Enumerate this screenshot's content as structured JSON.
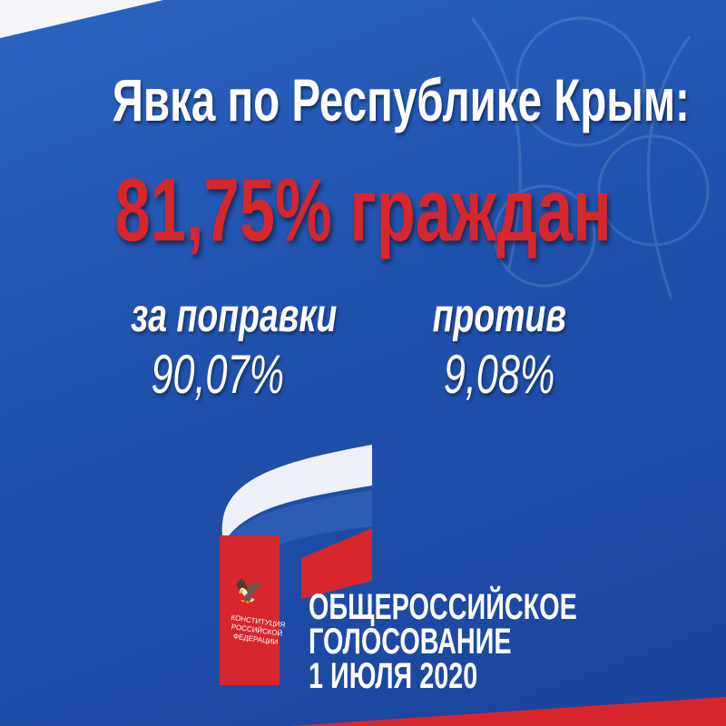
{
  "header": {
    "title": "Явка по Республике Крым:",
    "turnout": "81,75% граждан"
  },
  "results": {
    "for": {
      "label": "за поправки",
      "value": "90,07%"
    },
    "against": {
      "label": "против",
      "value": "9,08%"
    }
  },
  "logo": {
    "booklet_text": "КОНСТИТУЦИЯ РОССИЙСКОЙ ФЕДЕРАЦИИ",
    "line1": "ОБЩЕРОССИЙСКОЕ",
    "line2": "ГОЛОСОВАНИЕ",
    "line3": "1 ИЮЛЯ 2020",
    "emblem": "double-headed-eagle-icon"
  },
  "colors": {
    "blue": "#1f52ad",
    "red": "#d8262d",
    "white": "#ffffff"
  }
}
